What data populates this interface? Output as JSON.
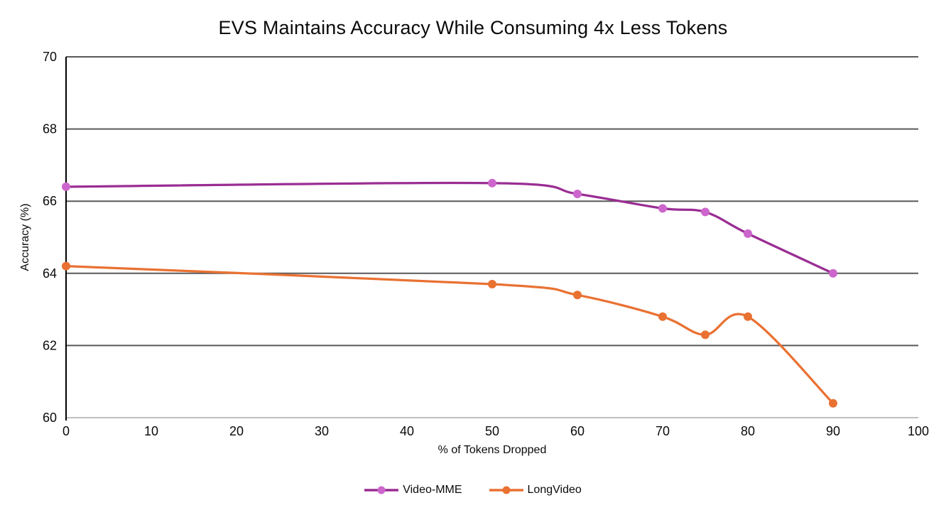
{
  "chart_data": {
    "type": "line",
    "title": "EVS Maintains Accuracy While Consuming 4x Less Tokens",
    "xlabel": "% of Tokens Dropped",
    "ylabel": "Accuracy (%)",
    "xlim": [
      0,
      100
    ],
    "ylim": [
      60,
      70
    ],
    "x_ticks": [
      0,
      10,
      20,
      30,
      40,
      50,
      60,
      70,
      80,
      90,
      100
    ],
    "y_ticks": [
      60,
      62,
      64,
      66,
      68,
      70
    ],
    "grid": "horizontal",
    "smooth_lines": true,
    "legend_position": "bottom",
    "x": [
      0,
      50,
      60,
      70,
      75,
      80,
      90
    ],
    "series": [
      {
        "name": "Video-MME",
        "line_color": "#9A2D93",
        "marker_color": "#CC66CC",
        "values": [
          66.4,
          66.5,
          66.2,
          65.8,
          65.7,
          65.1,
          64.0
        ]
      },
      {
        "name": "LongVideo",
        "line_color": "#E97132",
        "marker_color": "#E97132",
        "values": [
          64.2,
          63.7,
          63.4,
          62.8,
          62.3,
          62.8,
          60.4
        ]
      }
    ],
    "colors": {
      "gridline": "#595959",
      "x_axis_line": "#BFBFBF",
      "y_axis_line": "#000000",
      "tick_text": "#0a0a0a"
    }
  }
}
